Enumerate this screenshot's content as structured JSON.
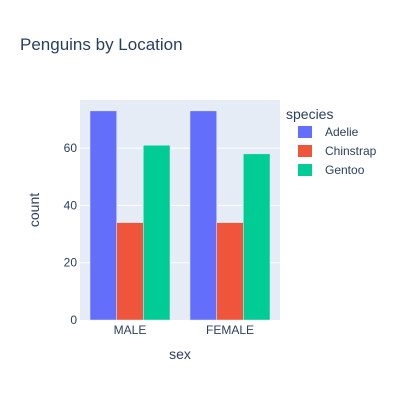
{
  "chart_data": {
    "type": "bar",
    "title": "Penguins by Location",
    "xlabel": "sex",
    "ylabel": "count",
    "categories": [
      "MALE",
      "FEMALE"
    ],
    "series": [
      {
        "name": "Adelie",
        "color": "#636efa",
        "values": [
          73,
          73
        ]
      },
      {
        "name": "Chinstrap",
        "color": "#ef553b",
        "values": [
          34,
          34
        ]
      },
      {
        "name": "Gentoo",
        "color": "#00cc96",
        "values": [
          61,
          58
        ]
      }
    ],
    "ylim": [
      0,
      76.8
    ],
    "yticks": [
      0,
      20,
      40,
      60
    ],
    "legend": {
      "title": "species",
      "placement": "top-right"
    },
    "grid": true,
    "plot_background": "#e5ecf6",
    "gridline_color": "#ffffff"
  }
}
